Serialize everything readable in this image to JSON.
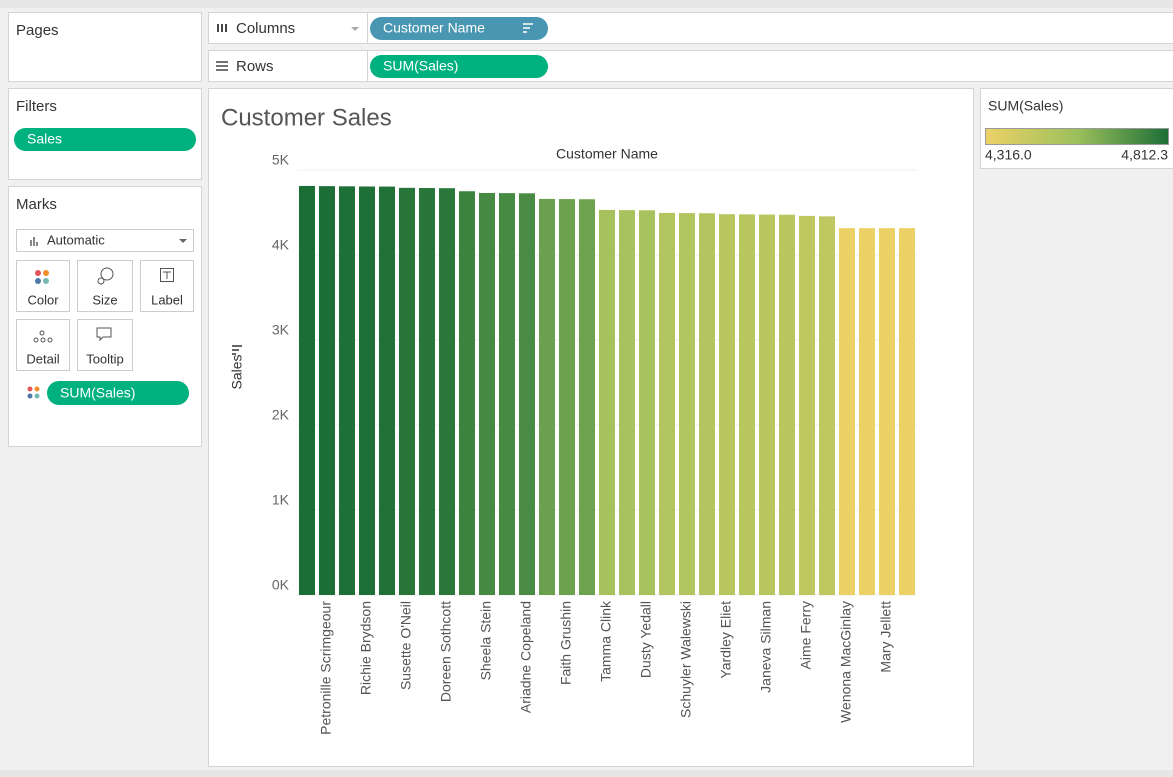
{
  "ui": {
    "pages": "Pages",
    "filters": {
      "title": "Filters",
      "pill": "Sales"
    },
    "marks": {
      "title": "Marks",
      "mark_type": "Automatic",
      "buttons": [
        "Color",
        "Size",
        "Label",
        "Detail",
        "Tooltip"
      ],
      "pill": "SUM(Sales)"
    },
    "columns": {
      "label": "Columns",
      "pill": "Customer Name"
    },
    "rows": {
      "label": "Rows",
      "pill": "SUM(Sales)"
    }
  },
  "chart_data": {
    "type": "bar",
    "title": "Customer Sales",
    "x_axis_title": "Customer Name",
    "y_axis_title": "Sales",
    "categories": [
      null,
      "Petronille Scrimgeour",
      null,
      "Richie Brydson",
      null,
      "Susette O'Neil",
      null,
      "Doreen Sothcott",
      null,
      "Sheela Stein",
      null,
      "Ariadne Copeland",
      null,
      "Faith Grushin",
      null,
      "Tamma Clink",
      null,
      "Dusty Yedall",
      null,
      "Schuyler Walewski",
      null,
      "Yardley Eliet",
      null,
      "Janeva Silman",
      null,
      "Aime Ferry",
      null,
      "Wenona MacGinlay",
      null,
      "Mary Jellett",
      null
    ],
    "values": [
      4812.3,
      4810,
      4808,
      4806,
      4805,
      4790,
      4788,
      4786,
      4750,
      4730,
      4728,
      4726,
      4660,
      4658,
      4656,
      4530,
      4528,
      4526,
      4495,
      4493,
      4491,
      4480,
      4478,
      4476,
      4474,
      4460,
      4455,
      4316,
      4316,
      4316,
      4316
    ],
    "ylim": [
      0,
      5000
    ],
    "yticks": [
      {
        "value": 0,
        "label": "0K"
      },
      {
        "value": 1000,
        "label": "1K"
      },
      {
        "value": 2000,
        "label": "2K"
      },
      {
        "value": 3000,
        "label": "3K"
      },
      {
        "value": 4000,
        "label": "4K"
      },
      {
        "value": 5000,
        "label": "5K"
      }
    ],
    "grid": true,
    "color_scale": [
      "#ecd166",
      "#9cc05c",
      "#1c6e37"
    ],
    "color_legend": {
      "title": "SUM(Sales)",
      "min": {
        "value": 4316,
        "label": "4,316.0"
      },
      "max": {
        "value": 4812.3,
        "label": "4,812.3"
      }
    }
  }
}
